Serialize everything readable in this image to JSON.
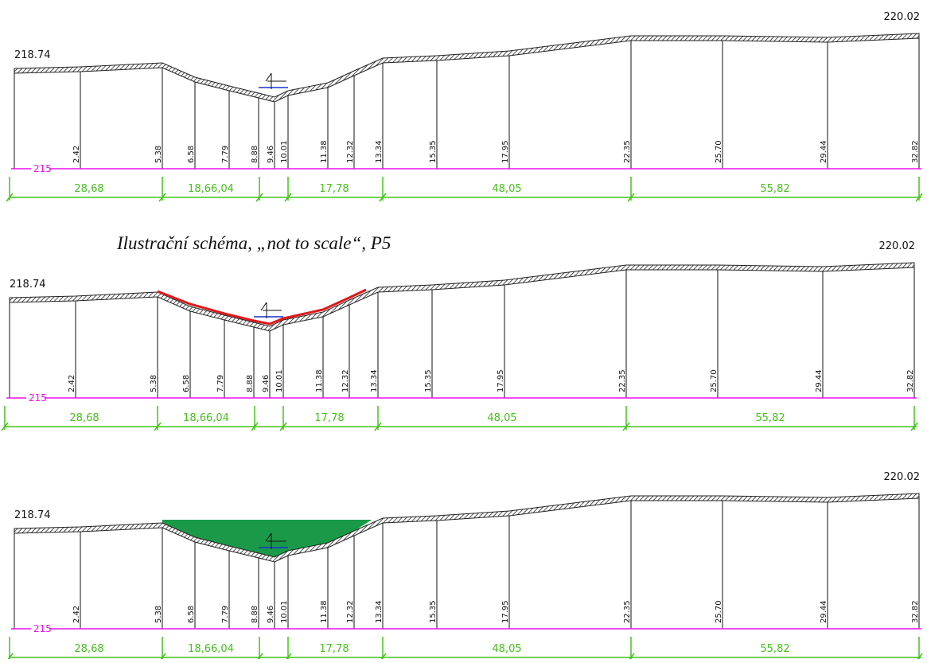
{
  "caption": "Ilustrační schéma, „not to scale“, P5",
  "colors": {
    "terrain": "#222222",
    "hatch": "#222222",
    "datum_line": "#ee10ee",
    "dimension": "#44c21a",
    "water": "#1a2fd0",
    "highlight": "#e0181b",
    "fill": "#1a9a48"
  },
  "icons": [
    "water-level-symbol-icon"
  ],
  "panels": [
    {
      "id": "panel-1",
      "variant": "plain",
      "elevation_left": "218.74",
      "elevation_right": "220.02",
      "datum_label": "215",
      "distance_labels": [
        "2.42",
        "5.38",
        "6.58",
        "7.79",
        "8.88",
        "9.46",
        "10.01",
        "11.38",
        "12.32",
        "13.34",
        "15.35",
        "17.95",
        "22.35",
        "25.70",
        "29.44",
        "32.82"
      ],
      "segment_labels": [
        "28,68",
        "18,66,04",
        "17,78",
        "48,05",
        "55,82"
      ]
    },
    {
      "id": "panel-2",
      "variant": "red-highlight",
      "elevation_left": "218.74",
      "elevation_right": "220.02",
      "datum_label": "215",
      "distance_labels": [
        "2.42",
        "5.38",
        "6.58",
        "7.79",
        "8.88",
        "9.46",
        "10.01",
        "11.38",
        "12.32",
        "13.34",
        "15.35",
        "17.95",
        "22.35",
        "25.70",
        "29.44",
        "32.82"
      ],
      "segment_labels": [
        "28,68",
        "18,66,04",
        "17,78",
        "48,05",
        "55,82"
      ]
    },
    {
      "id": "panel-3",
      "variant": "green-fill",
      "elevation_left": "218.74",
      "elevation_right": "220.02",
      "datum_label": "215",
      "distance_labels": [
        "2.42",
        "5.38",
        "6.58",
        "7.79",
        "8.88",
        "9.46",
        "10.01",
        "11.38",
        "12.32",
        "13.34",
        "15.35",
        "17.95",
        "22.35",
        "25.70",
        "29.44",
        "32.82"
      ],
      "segment_labels": [
        "28,68",
        "18,66,04",
        "17,78",
        "48,05",
        "55,82"
      ]
    }
  ]
}
